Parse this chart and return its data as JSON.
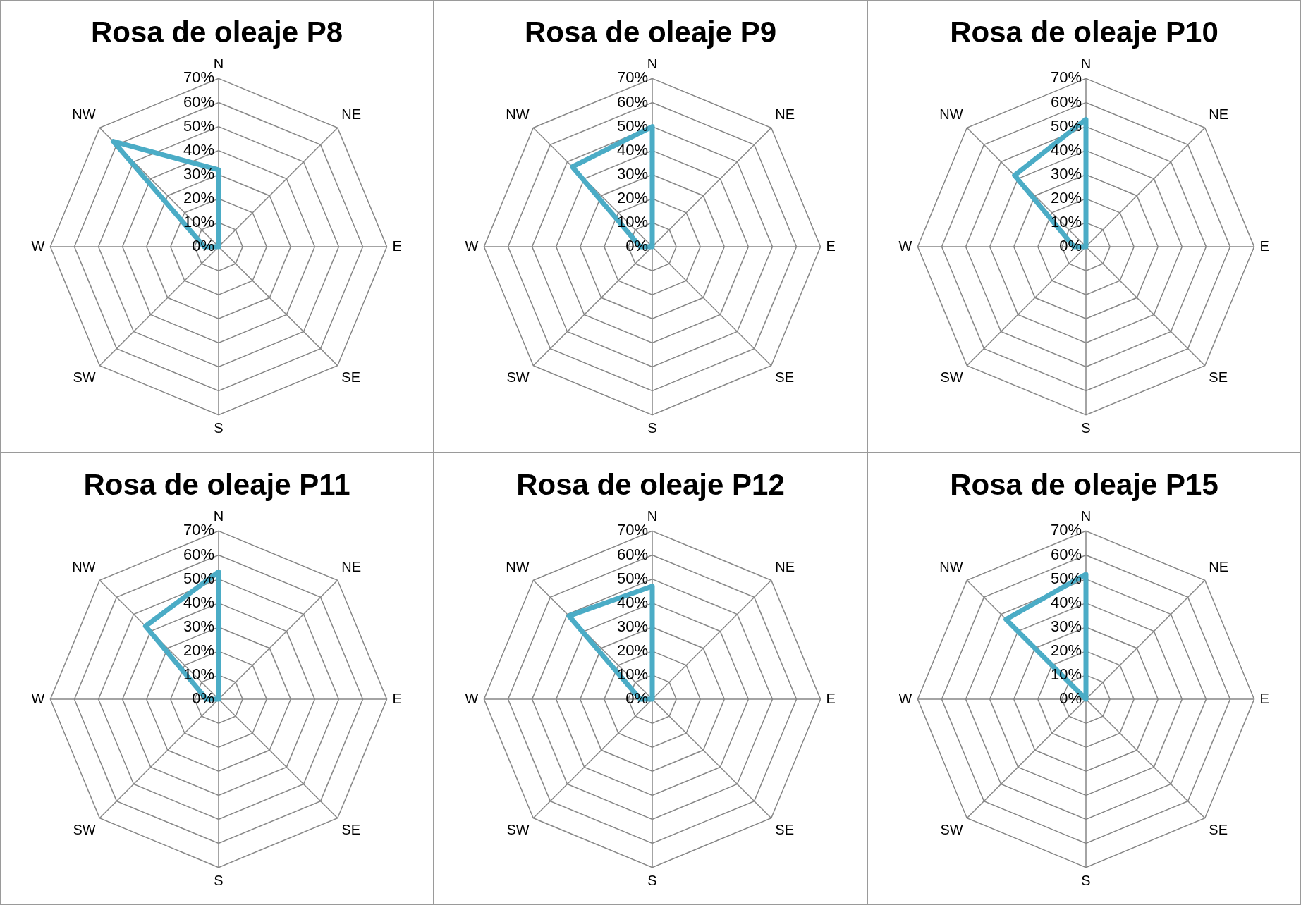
{
  "chart_data": [
    {
      "type": "radar",
      "title": "Rosa de oleaje P8",
      "categories": [
        "N",
        "NE",
        "E",
        "SE",
        "S",
        "SW",
        "W",
        "NW"
      ],
      "series": [
        {
          "color": "#4bacc6",
          "values": [
            32,
            0,
            0,
            0,
            0,
            0,
            6,
            62
          ]
        }
      ],
      "ylim": [
        0,
        70
      ],
      "yticks": [
        {
          "value": 0,
          "label": "0%"
        },
        {
          "value": 10,
          "label": "10%"
        },
        {
          "value": 20,
          "label": "20%"
        },
        {
          "value": 30,
          "label": "30%"
        },
        {
          "value": 40,
          "label": "40%"
        },
        {
          "value": 50,
          "label": "50%"
        },
        {
          "value": 60,
          "label": "60%"
        },
        {
          "value": 70,
          "label": "70%"
        }
      ],
      "grid": true,
      "legend": false,
      "marker": "none"
    },
    {
      "type": "radar",
      "title": "Rosa de oleaje P9",
      "categories": [
        "N",
        "NE",
        "E",
        "SE",
        "S",
        "SW",
        "W",
        "NW"
      ],
      "series": [
        {
          "color": "#4bacc6",
          "values": [
            50,
            0,
            0,
            0,
            0,
            0,
            5,
            47
          ]
        }
      ],
      "ylim": [
        0,
        70
      ],
      "yticks": [
        {
          "value": 0,
          "label": "0%"
        },
        {
          "value": 10,
          "label": "10%"
        },
        {
          "value": 20,
          "label": "20%"
        },
        {
          "value": 30,
          "label": "30%"
        },
        {
          "value": 40,
          "label": "40%"
        },
        {
          "value": 50,
          "label": "50%"
        },
        {
          "value": 60,
          "label": "60%"
        },
        {
          "value": 70,
          "label": "70%"
        }
      ],
      "grid": true,
      "legend": false,
      "marker": "none"
    },
    {
      "type": "radar",
      "title": "Rosa de oleaje P10",
      "categories": [
        "N",
        "NE",
        "E",
        "SE",
        "S",
        "SW",
        "W",
        "NW"
      ],
      "series": [
        {
          "color": "#4bacc6",
          "values": [
            53,
            0,
            0,
            0,
            0,
            0,
            5,
            42
          ]
        }
      ],
      "ylim": [
        0,
        70
      ],
      "yticks": [
        {
          "value": 0,
          "label": "0%"
        },
        {
          "value": 10,
          "label": "10%"
        },
        {
          "value": 20,
          "label": "20%"
        },
        {
          "value": 30,
          "label": "30%"
        },
        {
          "value": 40,
          "label": "40%"
        },
        {
          "value": 50,
          "label": "50%"
        },
        {
          "value": 60,
          "label": "60%"
        },
        {
          "value": 70,
          "label": "70%"
        }
      ],
      "grid": true,
      "legend": false,
      "marker": "none"
    },
    {
      "type": "radar",
      "title": "Rosa de oleaje P11",
      "categories": [
        "N",
        "NE",
        "E",
        "SE",
        "S",
        "SW",
        "W",
        "NW"
      ],
      "series": [
        {
          "color": "#4bacc6",
          "values": [
            53,
            0,
            0,
            0,
            0,
            0,
            5,
            43
          ]
        }
      ],
      "ylim": [
        0,
        70
      ],
      "yticks": [
        {
          "value": 0,
          "label": "0%"
        },
        {
          "value": 10,
          "label": "10%"
        },
        {
          "value": 20,
          "label": "20%"
        },
        {
          "value": 30,
          "label": "30%"
        },
        {
          "value": 40,
          "label": "40%"
        },
        {
          "value": 50,
          "label": "50%"
        },
        {
          "value": 60,
          "label": "60%"
        },
        {
          "value": 70,
          "label": "70%"
        }
      ],
      "grid": true,
      "legend": false,
      "marker": "none"
    },
    {
      "type": "radar",
      "title": "Rosa de oleaje P12",
      "categories": [
        "N",
        "NE",
        "E",
        "SE",
        "S",
        "SW",
        "W",
        "NW"
      ],
      "series": [
        {
          "color": "#4bacc6",
          "values": [
            47,
            0,
            0,
            0,
            0,
            0,
            5,
            49
          ]
        }
      ],
      "ylim": [
        0,
        70
      ],
      "yticks": [
        {
          "value": 0,
          "label": "0%"
        },
        {
          "value": 10,
          "label": "10%"
        },
        {
          "value": 20,
          "label": "20%"
        },
        {
          "value": 30,
          "label": "30%"
        },
        {
          "value": 40,
          "label": "40%"
        },
        {
          "value": 50,
          "label": "50%"
        },
        {
          "value": 60,
          "label": "60%"
        },
        {
          "value": 70,
          "label": "70%"
        }
      ],
      "grid": true,
      "legend": false,
      "marker": "none"
    },
    {
      "type": "radar",
      "title": "Rosa de oleaje P15",
      "categories": [
        "N",
        "NE",
        "E",
        "SE",
        "S",
        "SW",
        "W",
        "NW"
      ],
      "series": [
        {
          "color": "#4bacc6",
          "values": [
            52,
            0,
            0,
            0,
            0,
            0,
            0,
            47
          ]
        }
      ],
      "ylim": [
        0,
        70
      ],
      "yticks": [
        {
          "value": 0,
          "label": "0%"
        },
        {
          "value": 10,
          "label": "10%"
        },
        {
          "value": 20,
          "label": "20%"
        },
        {
          "value": 30,
          "label": "30%"
        },
        {
          "value": 40,
          "label": "40%"
        },
        {
          "value": 50,
          "label": "50%"
        },
        {
          "value": 60,
          "label": "60%"
        },
        {
          "value": 70,
          "label": "70%"
        }
      ],
      "grid": true,
      "legend": false,
      "marker": "none"
    }
  ]
}
